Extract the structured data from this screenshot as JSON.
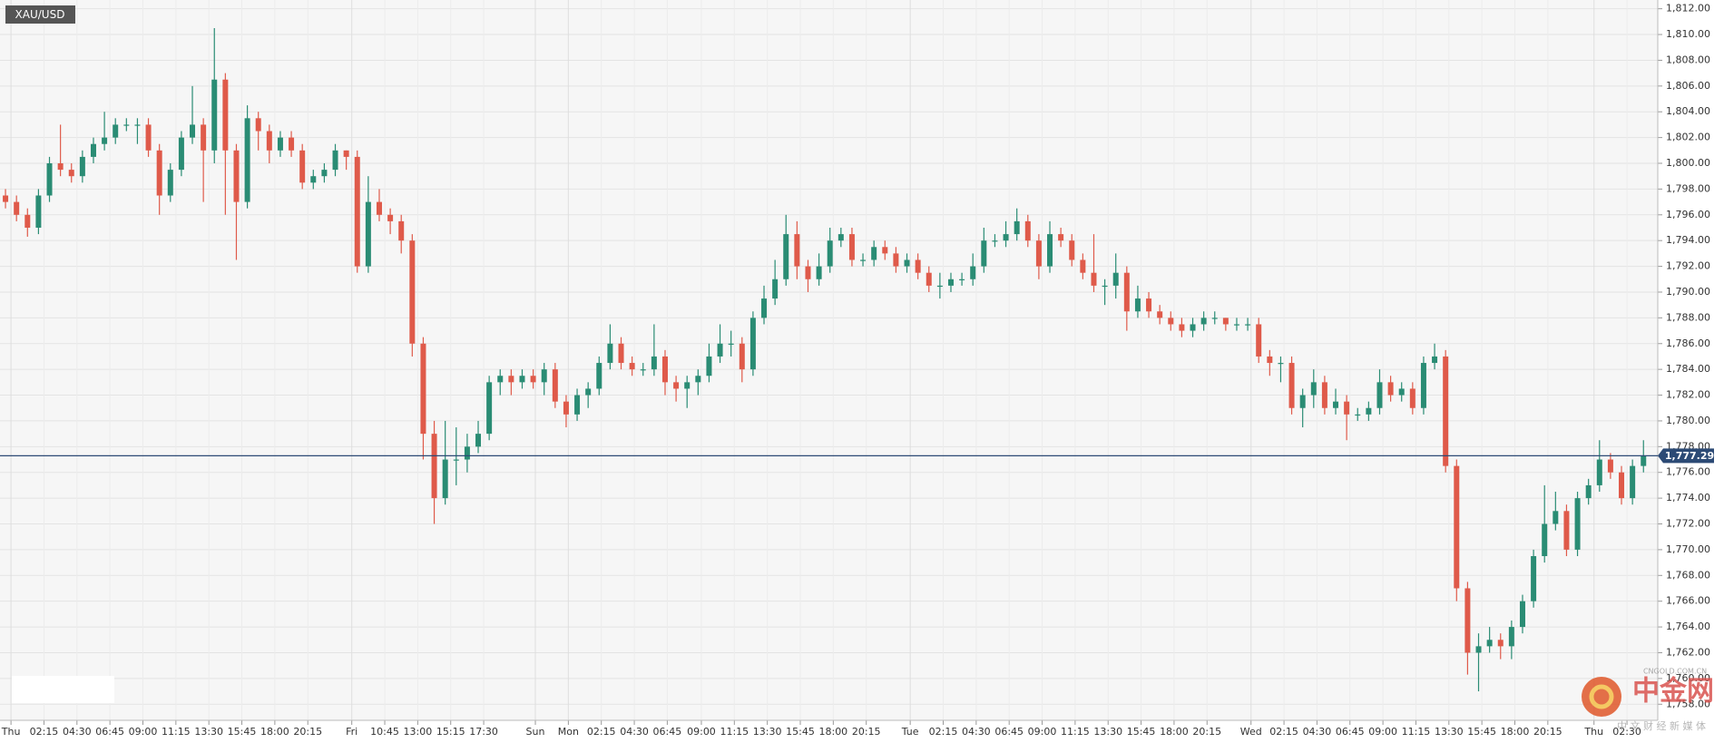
{
  "chart_data": {
    "type": "candlestick",
    "title": "XAU/USD",
    "ylim": [
      1756.75,
      1812.68
    ],
    "yticks": [
      {
        "value": 1758,
        "label": "1,758.00"
      },
      {
        "value": 1760,
        "label": "1,760.00"
      },
      {
        "value": 1762,
        "label": "1,762.00"
      },
      {
        "value": 1764,
        "label": "1,764.00"
      },
      {
        "value": 1766,
        "label": "1,766.00"
      },
      {
        "value": 1768,
        "label": "1,768.00"
      },
      {
        "value": 1770,
        "label": "1,770.00"
      },
      {
        "value": 1772,
        "label": "1,772.00"
      },
      {
        "value": 1774,
        "label": "1,774.00"
      },
      {
        "value": 1776,
        "label": "1,776.00"
      },
      {
        "value": 1778,
        "label": "1,778.00"
      },
      {
        "value": 1780,
        "label": "1,780.00"
      },
      {
        "value": 1782,
        "label": "1,782.00"
      },
      {
        "value": 1784,
        "label": "1,784.00"
      },
      {
        "value": 1786,
        "label": "1,786.00"
      },
      {
        "value": 1788,
        "label": "1,788.00"
      },
      {
        "value": 1790,
        "label": "1,790.00"
      },
      {
        "value": 1792,
        "label": "1,792.00"
      },
      {
        "value": 1794,
        "label": "1,794.00"
      },
      {
        "value": 1796,
        "label": "1,796.00"
      },
      {
        "value": 1798,
        "label": "1,798.00"
      },
      {
        "value": 1800,
        "label": "1,800.00"
      },
      {
        "value": 1802,
        "label": "1,802.00"
      },
      {
        "value": 1804,
        "label": "1,804.00"
      },
      {
        "value": 1806,
        "label": "1,806.00"
      },
      {
        "value": 1808,
        "label": "1,808.00"
      },
      {
        "value": 1810,
        "label": "1,810.00"
      },
      {
        "value": 1812,
        "label": "1,812.00"
      }
    ],
    "xlim": [
      0,
      150.8
    ],
    "xticks": [
      {
        "value": 1,
        "label": "Thu"
      },
      {
        "value": 4,
        "label": "02:15"
      },
      {
        "value": 7,
        "label": "04:30"
      },
      {
        "value": 10,
        "label": "06:45"
      },
      {
        "value": 13,
        "label": "09:00"
      },
      {
        "value": 16,
        "label": "11:15"
      },
      {
        "value": 19,
        "label": "13:30"
      },
      {
        "value": 22,
        "label": "15:45"
      },
      {
        "value": 25,
        "label": "18:00"
      },
      {
        "value": 28,
        "label": "20:15"
      },
      {
        "value": 32,
        "label": "Fri"
      },
      {
        "value": 35,
        "label": "10:45"
      },
      {
        "value": 38,
        "label": "13:00"
      },
      {
        "value": 41,
        "label": "15:15"
      },
      {
        "value": 44,
        "label": "17:30"
      },
      {
        "value": 48.7,
        "label": "Sun"
      },
      {
        "value": 51.7,
        "label": "Mon"
      },
      {
        "value": 54.7,
        "label": "02:15"
      },
      {
        "value": 57.7,
        "label": "04:30"
      },
      {
        "value": 60.7,
        "label": "06:45"
      },
      {
        "value": 63.8,
        "label": "09:00"
      },
      {
        "value": 66.8,
        "label": "11:15"
      },
      {
        "value": 69.8,
        "label": "13:30"
      },
      {
        "value": 72.8,
        "label": "15:45"
      },
      {
        "value": 75.8,
        "label": "18:00"
      },
      {
        "value": 78.8,
        "label": "20:15"
      },
      {
        "value": 82.8,
        "label": "Tue"
      },
      {
        "value": 85.8,
        "label": "02:15"
      },
      {
        "value": 88.8,
        "label": "04:30"
      },
      {
        "value": 91.8,
        "label": "06:45"
      },
      {
        "value": 94.8,
        "label": "09:00"
      },
      {
        "value": 97.8,
        "label": "11:15"
      },
      {
        "value": 100.8,
        "label": "13:30"
      },
      {
        "value": 103.8,
        "label": "15:45"
      },
      {
        "value": 106.8,
        "label": "18:00"
      },
      {
        "value": 109.8,
        "label": "20:15"
      },
      {
        "value": 113.8,
        "label": "Wed"
      },
      {
        "value": 116.8,
        "label": "02:15"
      },
      {
        "value": 119.8,
        "label": "04:30"
      },
      {
        "value": 122.8,
        "label": "06:45"
      },
      {
        "value": 125.8,
        "label": "09:00"
      },
      {
        "value": 128.8,
        "label": "11:15"
      },
      {
        "value": 131.8,
        "label": "13:30"
      },
      {
        "value": 134.8,
        "label": "15:45"
      },
      {
        "value": 137.8,
        "label": "18:00"
      },
      {
        "value": 140.8,
        "label": "20:15"
      },
      {
        "value": 145,
        "label": "Thu"
      },
      {
        "value": 148,
        "label": "02:30"
      }
    ],
    "grid": true,
    "up_color": "#2a8c74",
    "down_color": "#df5a4a",
    "open": [
      1797.5,
      1797,
      1796,
      1795,
      1797.5,
      1800,
      1799.5,
      1799,
      1800.5,
      1801.5,
      1802,
      1803,
      1803,
      1803,
      1801,
      1797.5,
      1799.5,
      1802,
      1803,
      1801,
      1806.5,
      1801,
      1797,
      1803.5,
      1802.5,
      1801,
      1802,
      1801,
      1798.5,
      1799,
      1799.5,
      1801,
      1800.5,
      1792,
      1797,
      1796,
      1795.5,
      1794,
      1786,
      1779,
      1774,
      1777,
      1777,
      1778,
      1779,
      1783,
      1783.5,
      1783,
      1783.5,
      1783,
      1784,
      1781.5,
      1780.5,
      1782,
      1782.5,
      1784.5,
      1786,
      1784.5,
      1784,
      1784,
      1785,
      1783,
      1782.5,
      1783,
      1783.5,
      1785,
      1786,
      1786,
      1784,
      1788,
      1789.5,
      1791,
      1794.5,
      1792,
      1791,
      1792,
      1794,
      1794.5,
      1792.5,
      1792.5,
      1793.5,
      1793,
      1792,
      1792.5,
      1791.5,
      1790.5,
      1790.5,
      1791,
      1791,
      1792,
      1794,
      1794,
      1794.5,
      1795.5,
      1794,
      1792,
      1794.5,
      1794,
      1792.5,
      1791.5,
      1790.5,
      1790.5,
      1791.5,
      1788.5,
      1789.5,
      1788.5,
      1788,
      1787.5,
      1787,
      1787.5,
      1788,
      1788,
      1787.5,
      1787.5,
      1787.5,
      1785,
      1784.5,
      1784.5,
      1781,
      1782,
      1783,
      1781,
      1781.5,
      1780.5,
      1780.5,
      1781,
      1783,
      1782,
      1782.5,
      1781,
      1784.5,
      1785,
      1776.5,
      1767,
      1762,
      1762.5,
      1763,
      1762.5,
      1764,
      1766,
      1769.5,
      1772,
      1773,
      1770,
      1774,
      1775,
      1777,
      1776,
      1774,
      1776.5
    ],
    "high": [
      1798,
      1797.5,
      1796.5,
      1798,
      1800.5,
      1803,
      1800,
      1801,
      1802,
      1804,
      1803.5,
      1803.5,
      1803.5,
      1803.5,
      1801.5,
      1800,
      1802.5,
      1806,
      1803.5,
      1810.5,
      1807,
      1801.5,
      1804.5,
      1804,
      1803,
      1802.5,
      1802.5,
      1801.5,
      1799.5,
      1800,
      1801.5,
      1801,
      1801,
      1799,
      1798,
      1796.5,
      1796,
      1794.5,
      1786.5,
      1780,
      1780,
      1779.5,
      1779,
      1780,
      1783.5,
      1784,
      1784,
      1784,
      1784,
      1784.5,
      1784.5,
      1782,
      1782.5,
      1783,
      1785,
      1787.5,
      1786.5,
      1785,
      1784.5,
      1787.5,
      1785.5,
      1783.5,
      1783.5,
      1784,
      1786,
      1787.5,
      1787,
      1786.5,
      1788.5,
      1790.5,
      1792.5,
      1796,
      1795.5,
      1792.5,
      1793,
      1795,
      1795,
      1795,
      1793,
      1794,
      1794,
      1793.5,
      1793,
      1793,
      1792,
      1791.5,
      1791.5,
      1791.5,
      1793,
      1795,
      1794.5,
      1795.5,
      1796.5,
      1796,
      1794.5,
      1795.5,
      1795,
      1794.5,
      1793,
      1794.5,
      1791,
      1793,
      1792,
      1790.5,
      1790,
      1789,
      1788.5,
      1788,
      1788,
      1788.5,
      1788.5,
      1788,
      1788,
      1788,
      1788,
      1785.5,
      1785,
      1785,
      1782.5,
      1784,
      1783.5,
      1782.5,
      1782,
      1781,
      1781.5,
      1784,
      1783.5,
      1783,
      1783,
      1785,
      1786,
      1785.5,
      1777,
      1767.5,
      1763.5,
      1764,
      1763.5,
      1764.5,
      1766.5,
      1770,
      1775,
      1774.5,
      1773.5,
      1774.5,
      1775.5,
      1778.5,
      1777.5,
      1776.5,
      1777,
      1778.5
    ],
    "low": [
      1796.5,
      1795.5,
      1794.3,
      1794.5,
      1797,
      1799,
      1798.5,
      1798.5,
      1800,
      1801,
      1801.5,
      1802.5,
      1801.5,
      1800.5,
      1796,
      1797,
      1799,
      1801.5,
      1797,
      1800,
      1796,
      1792.5,
      1796.5,
      1801,
      1800,
      1800.5,
      1800.5,
      1798,
      1798,
      1798.5,
      1799,
      1799.5,
      1791.5,
      1791.5,
      1795.5,
      1794.5,
      1793,
      1785,
      1777,
      1772,
      1773.5,
      1775,
      1776,
      1777.5,
      1778.5,
      1782,
      1782,
      1782.5,
      1782.5,
      1782,
      1781,
      1779.5,
      1780,
      1781,
      1782,
      1784,
      1784,
      1783.5,
      1783.5,
      1783.5,
      1782,
      1781.5,
      1781,
      1782,
      1783,
      1784.5,
      1785,
      1783,
      1783.5,
      1787.5,
      1789,
      1790.5,
      1791,
      1790,
      1790.5,
      1791.5,
      1793.5,
      1792,
      1792,
      1792,
      1792.5,
      1791.5,
      1791.5,
      1791,
      1790,
      1789.5,
      1790,
      1790.5,
      1790.5,
      1791.5,
      1793.5,
      1793.5,
      1794,
      1793.5,
      1791,
      1791.5,
      1793.5,
      1792,
      1791,
      1790,
      1789,
      1789.5,
      1787,
      1788,
      1788,
      1787.5,
      1787,
      1786.5,
      1786.5,
      1787,
      1787.5,
      1787,
      1787,
      1787,
      1784.5,
      1783.5,
      1783,
      1780.5,
      1779.5,
      1781,
      1780.5,
      1780.5,
      1778.5,
      1780,
      1780,
      1780.5,
      1781.5,
      1781.5,
      1780.5,
      1780.5,
      1784,
      1776,
      1766,
      1760.3,
      1759,
      1762,
      1761.5,
      1761.5,
      1763.5,
      1765.5,
      1769,
      1771.5,
      1769.5,
      1769.5,
      1773.5,
      1774.5,
      1775.5,
      1773.5,
      1773.5,
      1776
    ],
    "close": [
      1797,
      1796,
      1795,
      1797.5,
      1800,
      1799.5,
      1799,
      1800.5,
      1801.5,
      1802,
      1803,
      1803,
      1803,
      1801,
      1797.5,
      1799.5,
      1802,
      1803,
      1801,
      1806.5,
      1801,
      1797,
      1803.5,
      1802.5,
      1801,
      1802,
      1801,
      1798.5,
      1799,
      1799.5,
      1801,
      1800.5,
      1792,
      1797,
      1796,
      1795.5,
      1794,
      1786,
      1779,
      1774,
      1777,
      1777,
      1778,
      1779,
      1783,
      1783.5,
      1783,
      1783.5,
      1783,
      1784,
      1781.5,
      1780.5,
      1782,
      1782.5,
      1784.5,
      1786,
      1784.5,
      1784,
      1784,
      1785,
      1783,
      1782.5,
      1783,
      1783.5,
      1785,
      1786,
      1786,
      1784,
      1788,
      1789.5,
      1791,
      1794.5,
      1792,
      1791,
      1792,
      1794,
      1794.5,
      1792.5,
      1792.5,
      1793.5,
      1793,
      1792,
      1792.5,
      1791.5,
      1790.5,
      1790.5,
      1791,
      1791,
      1792,
      1794,
      1794,
      1794.5,
      1795.5,
      1794,
      1792,
      1794.5,
      1794,
      1792.5,
      1791.5,
      1790.5,
      1790.5,
      1791.5,
      1788.5,
      1789.5,
      1788.5,
      1788,
      1787.5,
      1787,
      1787.5,
      1788,
      1788,
      1787.5,
      1787.5,
      1787.5,
      1785,
      1784.5,
      1784.5,
      1781,
      1782,
      1783,
      1781,
      1781.5,
      1780.5,
      1780.5,
      1781,
      1783,
      1782,
      1782.5,
      1781,
      1784.5,
      1785,
      1776.5,
      1767,
      1762,
      1762.5,
      1763,
      1762.5,
      1764,
      1766,
      1769.5,
      1772,
      1773,
      1770,
      1774,
      1775,
      1777,
      1776,
      1774,
      1776.5,
      1777.29
    ],
    "last_price": {
      "value": 1777.29,
      "label": "1,777.29"
    }
  },
  "watermark": {
    "name": "中金网",
    "domain": "CNGOLD.COM.CN",
    "tagline": "中 文 财 经 新 媒 体"
  }
}
